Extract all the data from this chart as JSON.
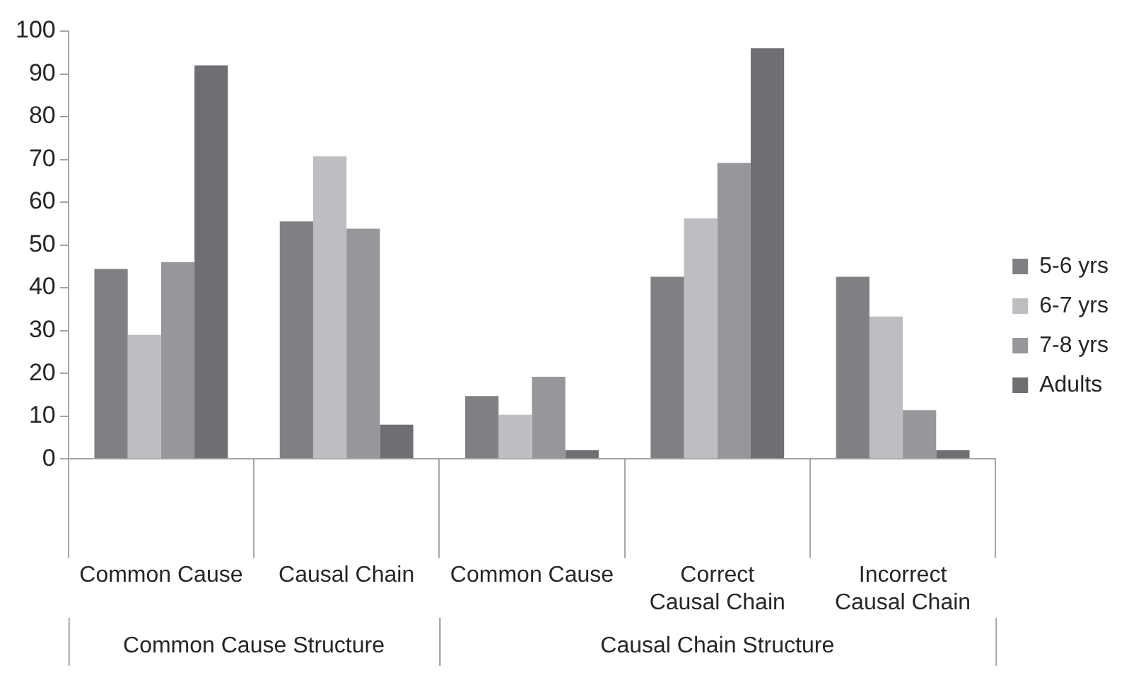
{
  "chart_data": {
    "type": "bar",
    "categories": [
      "Common Cause",
      "Causal Chain",
      "Common Cause",
      "Correct Causal Chain",
      "Incorrect Causal Chain"
    ],
    "series": [
      {
        "name": "5-6 yrs",
        "color": "#7f8084",
        "values": [
          44.4,
          55.5,
          14.7,
          42.6,
          42.6
        ]
      },
      {
        "name": "6-7 yrs",
        "color": "#bdbec1",
        "values": [
          29,
          70.7,
          10.3,
          56.2,
          33.3
        ]
      },
      {
        "name": "7-8 yrs",
        "color": "#96979b",
        "values": [
          46,
          53.8,
          19.2,
          69.2,
          11.4
        ]
      },
      {
        "name": "Adults",
        "color": "#6e6f73",
        "values": [
          92,
          8,
          2,
          96,
          2
        ]
      }
    ],
    "ylim": [
      0,
      100
    ],
    "yticks": [
      0,
      10,
      20,
      30,
      40,
      50,
      60,
      70,
      80,
      90,
      100
    ],
    "grid": false,
    "legend": "right",
    "annotations": [
      "Common Cause Structure",
      "Causal Chain Structure"
    ]
  }
}
